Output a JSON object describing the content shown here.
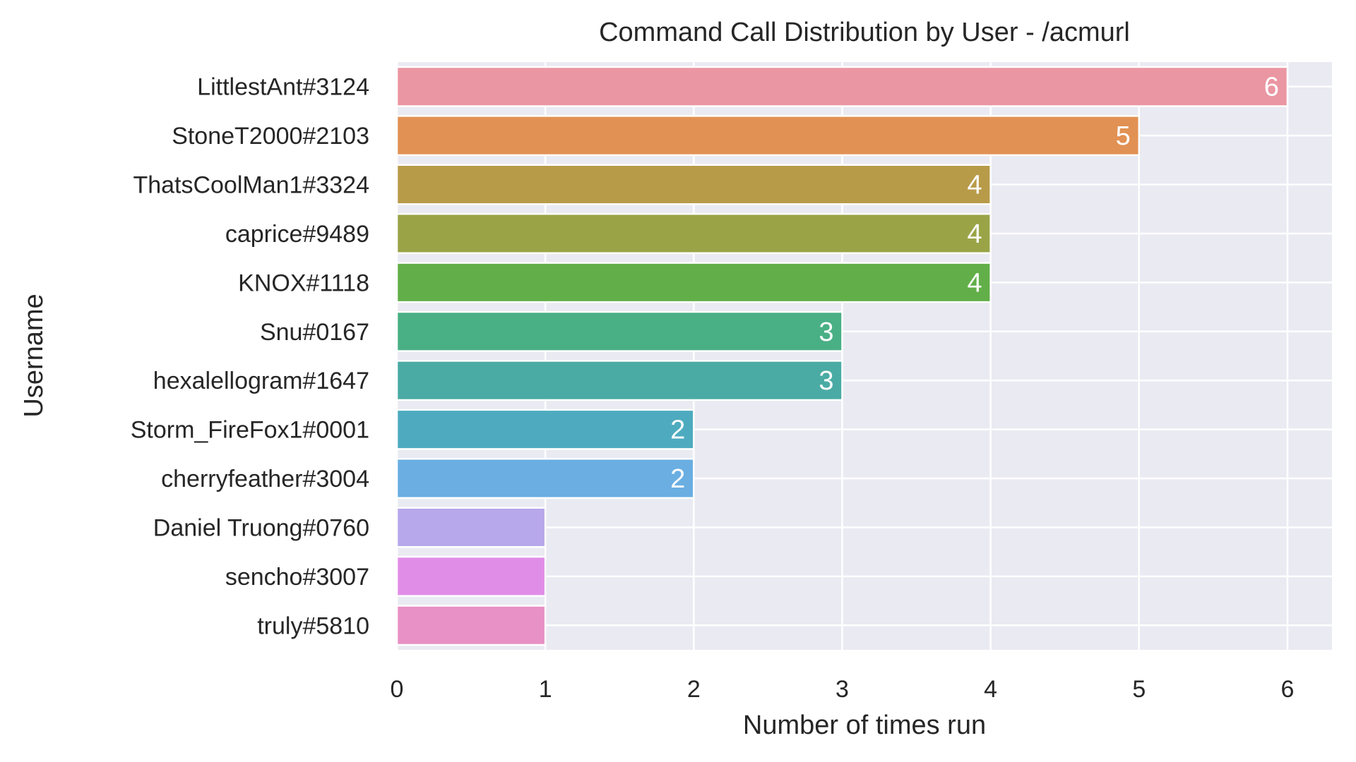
{
  "chart_data": {
    "type": "bar",
    "orientation": "horizontal",
    "title": "Command Call Distribution by User - /acmurl",
    "xlabel": "Number of times run",
    "ylabel": "Username",
    "xlim": [
      0,
      6.3
    ],
    "xticks": [
      "0",
      "1",
      "2",
      "3",
      "4",
      "5",
      "6"
    ],
    "grid": true,
    "background": "#EAEAF2",
    "categories": [
      "LittlestAnt#3124",
      "StoneT2000#2103",
      "ThatsCoolMan1#3324",
      "caprice#9489",
      "KNOX#1118",
      "Snu#0167",
      "hexalellogram#1647",
      "Storm_FireFox1#0001",
      "cherryfeather#3004",
      "Daniel Truong#0760",
      "sencho#3007",
      "truly#5810"
    ],
    "values": [
      6,
      5,
      4,
      4,
      4,
      3,
      3,
      2,
      2,
      1,
      1,
      1
    ],
    "data_labels": [
      "6",
      "5",
      "4",
      "4",
      "4",
      "3",
      "3",
      "2",
      "2",
      "",
      "",
      ""
    ],
    "colors": [
      "#EA96A3",
      "#E19153",
      "#B89B49",
      "#9AA447",
      "#62AF49",
      "#49AF85",
      "#4AABA4",
      "#4EABBF",
      "#6AAEE2",
      "#B7A7EB",
      "#E08DE8",
      "#E891C6"
    ]
  }
}
